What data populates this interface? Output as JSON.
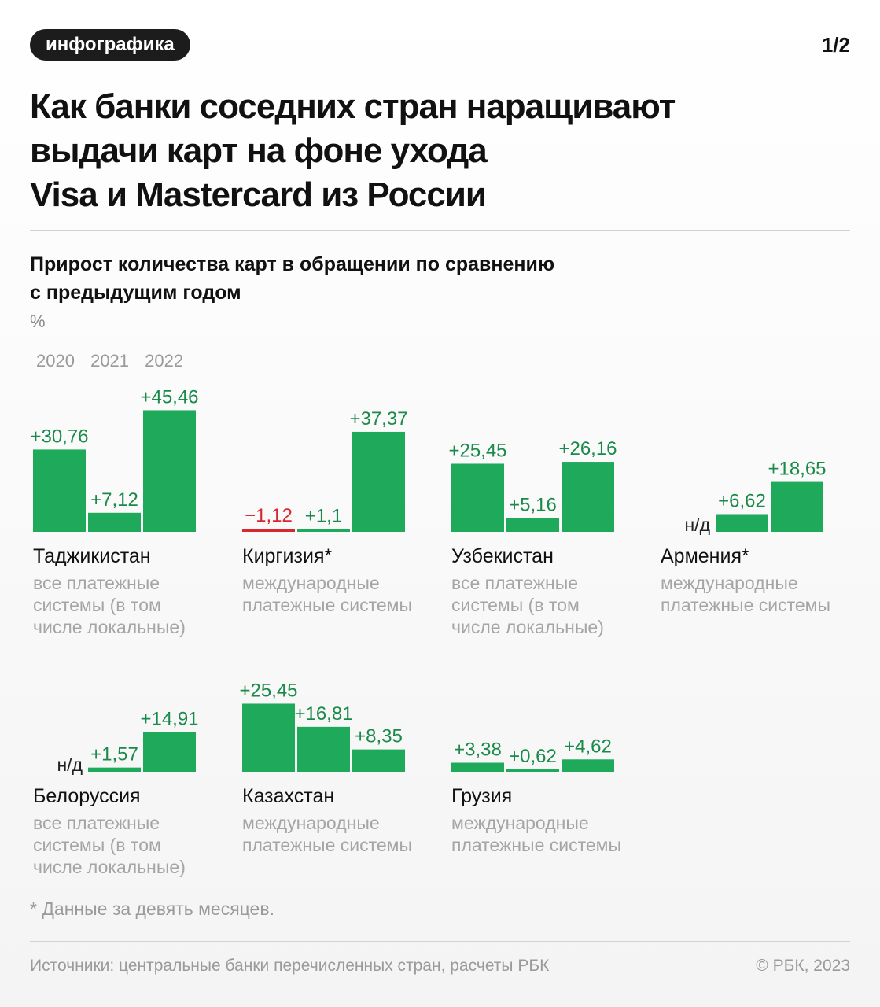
{
  "header": {
    "badge": "инфографика",
    "page": "1/2"
  },
  "title_lines": [
    "Как банки соседних стран наращивают",
    "выдачи карт на фоне ухода",
    "Visa и Mastercard из России"
  ],
  "subtitle_lines": [
    "Прирост количества карт в обращении по сравнению",
    "с предыдущим годом"
  ],
  "colors": {
    "positive": "#1faa5b",
    "negative": "#d9272e",
    "positive_text": "#1a8a4a",
    "negative_text": "#d9272e"
  },
  "chart_data": {
    "type": "bar",
    "unit": "%",
    "years": [
      "2020",
      "2021",
      "2022"
    ],
    "na_label": "н/д",
    "groups": [
      {
        "country": "Таджикистан",
        "systems": [
          "все платежные",
          "системы (в том",
          "числе локальные)"
        ],
        "values": [
          30.76,
          7.12,
          45.46
        ],
        "labels": [
          "+30,76",
          "+7,12",
          "+45,46"
        ]
      },
      {
        "country": "Киргизия*",
        "systems": [
          "международные",
          "платежные системы"
        ],
        "values": [
          -1.12,
          1.1,
          37.37
        ],
        "labels": [
          "−1,12",
          "+1,1",
          "+37,37"
        ]
      },
      {
        "country": "Узбекистан",
        "systems": [
          "все платежные",
          "системы (в том",
          "числе локальные)"
        ],
        "values": [
          25.45,
          5.16,
          26.16
        ],
        "labels": [
          "+25,45",
          "+5,16",
          "+26,16"
        ]
      },
      {
        "country": "Армения*",
        "systems": [
          "международные",
          "платежные системы"
        ],
        "values": [
          null,
          6.62,
          18.65
        ],
        "labels": [
          "н/д",
          "+6,62",
          "+18,65"
        ]
      },
      {
        "country": "Белоруссия",
        "systems": [
          "все платежные",
          "системы (в том",
          "числе локальные)"
        ],
        "values": [
          null,
          1.57,
          14.91
        ],
        "labels": [
          "н/д",
          "+1,57",
          "+14,91"
        ]
      },
      {
        "country": "Казахстан",
        "systems": [
          "международные",
          "платежные системы"
        ],
        "values": [
          25.45,
          16.81,
          8.35
        ],
        "labels": [
          "+25,45",
          "+16,81",
          "+8,35"
        ]
      },
      {
        "country": "Грузия",
        "systems": [
          "международные",
          "платежные системы"
        ],
        "values": [
          3.38,
          0.62,
          4.62
        ],
        "labels": [
          "+3,38",
          "+0,62",
          "+4,62"
        ]
      }
    ]
  },
  "footnote": "* Данные за девять месяцев.",
  "sources": "Источники: центральные банки перечисленных стран, расчеты РБК",
  "copyright": "© РБК, 2023"
}
